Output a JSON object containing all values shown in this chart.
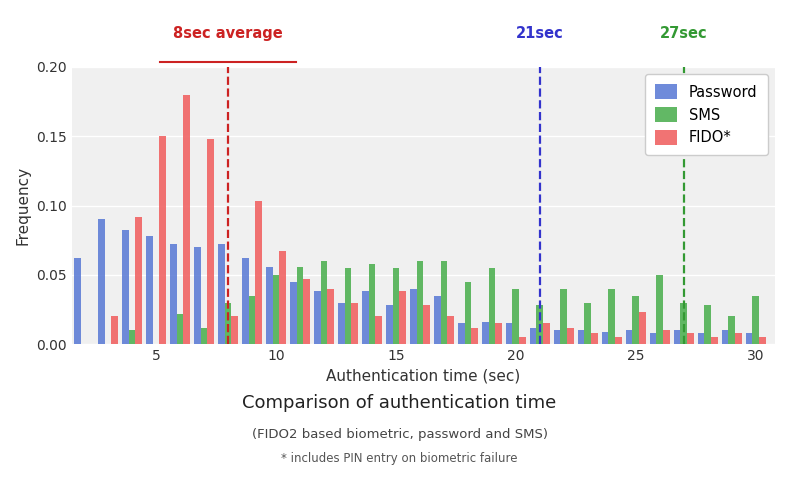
{
  "title": "Comparison of authentication time",
  "subtitle1": "(FIDO2 based biometric, password and SMS)",
  "subtitle2": "* includes PIN entry on biometric failure",
  "xlabel": "Authentication time (sec)",
  "ylabel": "Frequency",
  "ylim": [
    0,
    0.2
  ],
  "yticks": [
    0.0,
    0.05,
    0.1,
    0.15,
    0.2
  ],
  "xticks": [
    5,
    10,
    15,
    20,
    25,
    30
  ],
  "bar_width": 0.28,
  "bin_centers": [
    2,
    3,
    4,
    5,
    6,
    7,
    8,
    9,
    10,
    11,
    12,
    13,
    14,
    15,
    16,
    17,
    18,
    19,
    20,
    21,
    22,
    23,
    24,
    25,
    26,
    27,
    28,
    29,
    30
  ],
  "password": [
    0.062,
    0.09,
    0.082,
    0.078,
    0.072,
    0.07,
    0.072,
    0.062,
    0.056,
    0.045,
    0.038,
    0.03,
    0.038,
    0.028,
    0.04,
    0.035,
    0.015,
    0.016,
    0.015,
    0.012,
    0.01,
    0.01,
    0.009,
    0.01,
    0.008,
    0.01,
    0.008,
    0.01,
    0.008
  ],
  "sms": [
    0.0,
    0.0,
    0.01,
    0.0,
    0.022,
    0.012,
    0.03,
    0.035,
    0.05,
    0.056,
    0.06,
    0.055,
    0.058,
    0.055,
    0.06,
    0.06,
    0.045,
    0.055,
    0.04,
    0.028,
    0.04,
    0.03,
    0.04,
    0.035,
    0.05,
    0.03,
    0.028,
    0.02,
    0.035
  ],
  "fido": [
    0.0,
    0.02,
    0.092,
    0.15,
    0.18,
    0.148,
    0.02,
    0.103,
    0.067,
    0.047,
    0.04,
    0.03,
    0.02,
    0.038,
    0.028,
    0.02,
    0.012,
    0.015,
    0.005,
    0.015,
    0.012,
    0.008,
    0.005,
    0.023,
    0.01,
    0.008,
    0.005,
    0.008,
    0.005
  ],
  "fido_avg": 8,
  "pass_avg": 21,
  "sms_avg": 27,
  "fido_avg_label": "8sec average",
  "pass_avg_label": "21sec",
  "sms_avg_label": "27sec",
  "color_password": "#5b7bd5",
  "color_sms": "#4caf50",
  "color_fido": "#f06060",
  "color_fido_line": "#cc2222",
  "color_pass_line": "#3333cc",
  "color_sms_line": "#339933",
  "bg_color": "#f0f0f0"
}
